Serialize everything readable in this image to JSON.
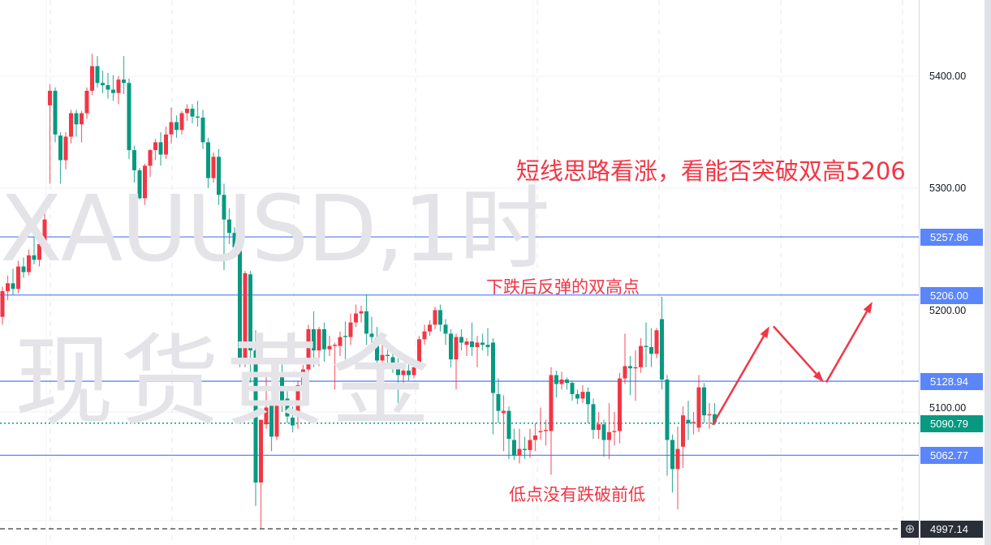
{
  "chart_data": {
    "type": "candlestick",
    "symbol_watermark": "XAUUSD,1时",
    "name_watermark": "现货黄金",
    "y_axis": {
      "ticks": [
        "5400.00",
        "5300.00",
        "5200.00",
        "5100.00"
      ],
      "tick_values": [
        5400,
        5300,
        5200,
        5100
      ],
      "ylim": [
        4985,
        5468
      ]
    },
    "up_color": "#f23645",
    "down_color": "#089981",
    "grid": true,
    "candles_ohlc": [
      [
        5185,
        5212,
        5178,
        5208
      ],
      [
        5208,
        5222,
        5200,
        5215
      ],
      [
        5215,
        5228,
        5205,
        5210
      ],
      [
        5210,
        5235,
        5206,
        5230
      ],
      [
        5230,
        5238,
        5220,
        5225
      ],
      [
        5225,
        5245,
        5222,
        5240
      ],
      [
        5240,
        5262,
        5232,
        5236
      ],
      [
        5236,
        5255,
        5230,
        5250
      ],
      [
        5250,
        5278,
        5245,
        5272
      ],
      [
        5374,
        5393,
        5304,
        5387
      ],
      [
        5387,
        5390,
        5341,
        5348
      ],
      [
        5347,
        5350,
        5304,
        5325
      ],
      [
        5325,
        5350,
        5317,
        5346
      ],
      [
        5346,
        5370,
        5340,
        5367
      ],
      [
        5367,
        5370,
        5346,
        5357
      ],
      [
        5357,
        5369,
        5341,
        5367
      ],
      [
        5367,
        5390,
        5362,
        5387
      ],
      [
        5387,
        5420,
        5383,
        5409
      ],
      [
        5409,
        5418,
        5390,
        5394
      ],
      [
        5394,
        5405,
        5385,
        5392
      ],
      [
        5392,
        5403,
        5380,
        5388
      ],
      [
        5388,
        5401,
        5378,
        5385
      ],
      [
        5385,
        5400,
        5375,
        5397
      ],
      [
        5397,
        5418,
        5384,
        5394
      ],
      [
        5394,
        5398,
        5326,
        5334
      ],
      [
        5334,
        5338,
        5305,
        5316
      ],
      [
        5316,
        5318,
        5290,
        5291
      ],
      [
        5291,
        5322,
        5285,
        5320
      ],
      [
        5320,
        5335,
        5310,
        5334
      ],
      [
        5334,
        5344,
        5325,
        5341
      ],
      [
        5341,
        5350,
        5320,
        5330
      ],
      [
        5330,
        5355,
        5326,
        5348
      ],
      [
        5348,
        5372,
        5340,
        5359
      ],
      [
        5359,
        5365,
        5345,
        5352
      ],
      [
        5352,
        5369,
        5348,
        5367
      ],
      [
        5367,
        5375,
        5360,
        5371
      ],
      [
        5371,
        5375,
        5358,
        5364
      ],
      [
        5364,
        5378,
        5355,
        5363
      ],
      [
        5363,
        5370,
        5335,
        5341
      ],
      [
        5341,
        5345,
        5300,
        5309
      ],
      [
        5309,
        5332,
        5305,
        5328
      ],
      [
        5328,
        5335,
        5285,
        5294
      ],
      [
        5294,
        5304,
        5227,
        5272
      ],
      [
        5272,
        5282,
        5250,
        5260
      ],
      [
        5260,
        5265,
        5240,
        5247
      ],
      [
        5247,
        5250,
        5140,
        5144
      ],
      [
        5144,
        5226,
        5140,
        5224
      ],
      [
        5223,
        5226,
        5126,
        5155
      ],
      [
        5155,
        5173,
        5016,
        5037
      ],
      [
        5037,
        5093,
        4996,
        5093
      ],
      [
        5089,
        5133,
        5085,
        5104
      ],
      [
        5106,
        5110,
        5065,
        5078
      ],
      [
        5078,
        5138,
        5075,
        5135
      ],
      [
        5135,
        5147,
        5100,
        5106
      ],
      [
        5112,
        5120,
        5090,
        5096
      ],
      [
        5095,
        5105,
        5082,
        5088
      ],
      [
        5097,
        5128,
        5085,
        5124
      ],
      [
        5124,
        5142,
        5110,
        5138
      ],
      [
        5138,
        5178,
        5132,
        5174
      ],
      [
        5174,
        5190,
        5140,
        5155
      ],
      [
        5155,
        5176,
        5141,
        5174
      ],
      [
        5174,
        5180,
        5145,
        5156
      ],
      [
        5156,
        5168,
        5150,
        5159
      ],
      [
        5159,
        5162,
        5120,
        5160
      ],
      [
        5159,
        5172,
        5150,
        5167
      ],
      [
        5168,
        5181,
        5147,
        5167
      ],
      [
        5167,
        5188,
        5160,
        5180
      ],
      [
        5180,
        5196,
        5176,
        5188
      ],
      [
        5188,
        5195,
        5180,
        5190
      ],
      [
        5190,
        5205,
        5160,
        5170
      ],
      [
        5170,
        5185,
        5162,
        5167
      ],
      [
        5166,
        5176,
        5140,
        5146
      ],
      [
        5146,
        5160,
        5130,
        5151
      ],
      [
        5151,
        5162,
        5140,
        5150
      ],
      [
        5149,
        5155,
        5135,
        5140
      ],
      [
        5140,
        5148,
        5108,
        5133
      ],
      [
        5133,
        5142,
        5122,
        5137
      ],
      [
        5137,
        5146,
        5128,
        5133
      ],
      [
        5133,
        5145,
        5130,
        5140
      ],
      [
        5144,
        5168,
        5138,
        5165
      ],
      [
        5165,
        5178,
        5160,
        5172
      ],
      [
        5172,
        5182,
        5168,
        5178
      ],
      [
        5178,
        5194,
        5174,
        5191
      ],
      [
        5191,
        5196,
        5172,
        5178
      ],
      [
        5178,
        5183,
        5160,
        5170
      ],
      [
        5170,
        5174,
        5140,
        5147
      ],
      [
        5147,
        5170,
        5120,
        5167
      ],
      [
        5167,
        5174,
        5155,
        5162
      ],
      [
        5160,
        5166,
        5150,
        5163
      ],
      [
        5163,
        5180,
        5150,
        5158
      ],
      [
        5158,
        5168,
        5140,
        5162
      ],
      [
        5162,
        5170,
        5155,
        5160
      ],
      [
        5160,
        5175,
        5150,
        5158
      ],
      [
        5162,
        5166,
        5080,
        5117
      ],
      [
        5116,
        5130,
        5090,
        5101
      ],
      [
        5099,
        5115,
        5065,
        5101
      ],
      [
        5101,
        5105,
        5058,
        5076
      ],
      [
        5075,
        5085,
        5057,
        5061
      ],
      [
        5061,
        5085,
        5054,
        5067
      ],
      [
        5067,
        5078,
        5058,
        5066
      ],
      [
        5066,
        5085,
        5059,
        5075
      ],
      [
        5075,
        5090,
        5065,
        5079
      ],
      [
        5082,
        5104,
        5075,
        5083
      ],
      [
        5083,
        5093,
        5070,
        5084
      ],
      [
        5083,
        5140,
        5044,
        5133
      ],
      [
        5133,
        5137,
        5113,
        5125
      ],
      [
        5125,
        5136,
        5120,
        5129
      ],
      [
        5129,
        5131,
        5120,
        5126
      ],
      [
        5126,
        5128,
        5110,
        5116
      ],
      [
        5116,
        5120,
        5107,
        5112
      ],
      [
        5112,
        5124,
        5108,
        5118
      ],
      [
        5118,
        5122,
        5090,
        5107
      ],
      [
        5107,
        5112,
        5076,
        5084
      ],
      [
        5084,
        5100,
        5076,
        5089
      ],
      [
        5089,
        5093,
        5060,
        5075
      ],
      [
        5075,
        5108,
        5058,
        5082
      ],
      [
        5082,
        5100,
        5070,
        5083
      ],
      [
        5083,
        5135,
        5072,
        5130
      ],
      [
        5130,
        5170,
        5125,
        5141
      ],
      [
        5141,
        5150,
        5115,
        5139
      ],
      [
        5139,
        5155,
        5110,
        5140
      ],
      [
        5140,
        5166,
        5135,
        5159
      ],
      [
        5159,
        5180,
        5140,
        5158
      ],
      [
        5158,
        5175,
        5140,
        5152
      ],
      [
        5152,
        5175,
        5148,
        5173
      ],
      [
        5183,
        5203,
        5120,
        5129
      ],
      [
        5129,
        5133,
        5043,
        5075
      ],
      [
        5075,
        5080,
        5028,
        5049
      ],
      [
        5049,
        5087,
        5013,
        5067
      ],
      [
        5069,
        5105,
        5050,
        5097
      ],
      [
        5093,
        5110,
        5075,
        5090
      ],
      [
        5090,
        5100,
        5080,
        5091
      ],
      [
        5086,
        5133,
        5082,
        5122
      ],
      [
        5122,
        5126,
        5090,
        5097
      ],
      [
        5097,
        5108,
        5085,
        5098
      ],
      [
        5098,
        5108,
        5088,
        5090.79
      ]
    ],
    "horizontal_lines": [
      {
        "price": 5257.86,
        "label": "5257.86",
        "color": "#5b86fb"
      },
      {
        "price": 5206.0,
        "label": "5206.00",
        "color": "#5b86fb"
      },
      {
        "price": 5128.94,
        "label": "5128.94",
        "color": "#5b86fb"
      },
      {
        "price": 5062.77,
        "label": "5062.77",
        "color": "#5b86fb"
      }
    ],
    "last_price": {
      "price": 5090.79,
      "label": "5090.79",
      "color": "#089981"
    },
    "crosshair_price": {
      "price": 4997.14,
      "label": "4997.14"
    },
    "annotations": [
      {
        "text": "短线思路看涨，看能否突破双高5206",
        "color": "#f23645"
      },
      {
        "text": "下跌后反弹的双高点",
        "color": "#f23645"
      },
      {
        "text": "低点没有跌破前低",
        "color": "#f23645"
      }
    ],
    "projection_arrows": [
      {
        "from": 5090,
        "to": 5178
      },
      {
        "from": 5178,
        "to": 5128
      },
      {
        "from": 5128,
        "to": 5200
      }
    ]
  },
  "axis": {
    "crosshair_icon": "plus-circle-icon"
  }
}
